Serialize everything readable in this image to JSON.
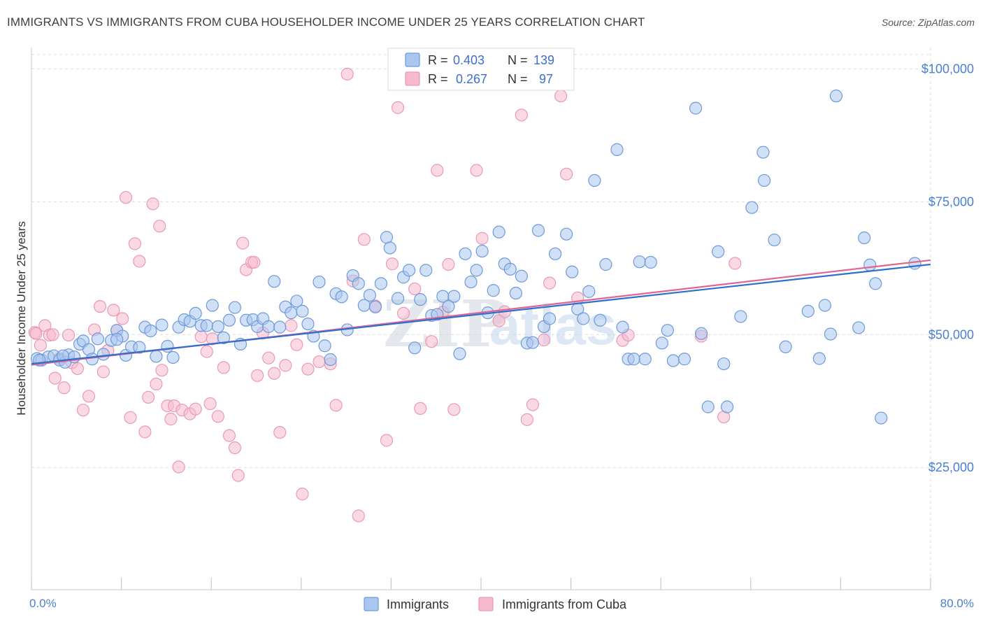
{
  "header": {
    "title": "IMMIGRANTS VS IMMIGRANTS FROM CUBA HOUSEHOLDER INCOME UNDER 25 YEARS CORRELATION CHART",
    "source": "Source: ZipAtlas.com"
  },
  "legend_top": {
    "rows": [
      {
        "r_label": "R =",
        "r_value": "0.403",
        "n_label": "N =",
        "n_value": "139"
      },
      {
        "r_label": "R =",
        "r_value": "0.267",
        "n_label": "N =",
        "n_value": "97"
      }
    ]
  },
  "legend_bottom": [
    "Immigrants",
    "Immigrants from Cuba"
  ],
  "watermark": {
    "part1": "ZIP",
    "part2": "atlas"
  },
  "colors": {
    "blue_fill": "#a9c6ee",
    "blue_stroke": "#6f9ad8",
    "blue_line": "#2f6fd0",
    "pink_fill": "#f6b9cd",
    "pink_stroke": "#e99ab5",
    "pink_line": "#e0658f",
    "grid": "#dcdcdc",
    "axis_text": "#4a7fd0"
  },
  "chart_data": {
    "type": "scatter",
    "title": "IMMIGRANTS VS IMMIGRANTS FROM CUBA HOUSEHOLDER INCOME UNDER 25 YEARS CORRELATION CHART",
    "xlabel": "",
    "ylabel": "Householder Income Under 25 years",
    "xlim": [
      0,
      80
    ],
    "ylim": [
      2000,
      104000
    ],
    "x_tick_labels": [
      "0.0%",
      "80.0%"
    ],
    "y_ticks": [
      25000,
      50000,
      75000,
      100000
    ],
    "y_tick_labels": [
      "$25,000",
      "$50,000",
      "$75,000",
      "$100,000"
    ],
    "grid": true,
    "series": [
      {
        "name": "Immigrants",
        "R": 0.403,
        "N": 139,
        "trend": {
          "x": [
            0,
            80
          ],
          "y": [
            44500,
            63200
          ]
        },
        "points": [
          [
            0.5,
            45500
          ],
          [
            0.9,
            45200
          ],
          [
            1.5,
            45800
          ],
          [
            2.0,
            46000
          ],
          [
            2.5,
            45200
          ],
          [
            3.0,
            44800
          ],
          [
            3.3,
            46200
          ],
          [
            3.8,
            45800
          ],
          [
            4.3,
            48200
          ],
          [
            4.6,
            48800
          ],
          [
            5.1,
            47200
          ],
          [
            5.4,
            45400
          ],
          [
            5.9,
            49200
          ],
          [
            6.4,
            46300
          ],
          [
            7.1,
            48900
          ],
          [
            7.6,
            50800
          ],
          [
            8.1,
            49700
          ],
          [
            8.4,
            46100
          ],
          [
            8.9,
            47700
          ],
          [
            9.6,
            47600
          ],
          [
            10.1,
            51400
          ],
          [
            10.6,
            50700
          ],
          [
            11.1,
            45900
          ],
          [
            11.6,
            51800
          ],
          [
            12.1,
            47800
          ],
          [
            12.6,
            45700
          ],
          [
            13.1,
            51400
          ],
          [
            13.6,
            52800
          ],
          [
            14.1,
            52500
          ],
          [
            14.6,
            54000
          ],
          [
            15.1,
            51700
          ],
          [
            15.6,
            51700
          ],
          [
            16.1,
            55500
          ],
          [
            16.6,
            51500
          ],
          [
            17.1,
            49400
          ],
          [
            17.6,
            52700
          ],
          [
            18.1,
            55100
          ],
          [
            18.6,
            48200
          ],
          [
            19.1,
            52700
          ],
          [
            19.7,
            52800
          ],
          [
            20.1,
            51500
          ],
          [
            20.6,
            53000
          ],
          [
            21.1,
            51500
          ],
          [
            21.6,
            60000
          ],
          [
            22.1,
            51400
          ],
          [
            22.6,
            55200
          ],
          [
            23.1,
            54100
          ],
          [
            23.6,
            56300
          ],
          [
            24.1,
            54400
          ],
          [
            24.6,
            52000
          ],
          [
            25.1,
            49700
          ],
          [
            25.6,
            59900
          ],
          [
            26.1,
            47900
          ],
          [
            26.6,
            45300
          ],
          [
            27.1,
            57700
          ],
          [
            27.6,
            57100
          ],
          [
            28.1,
            50900
          ],
          [
            28.6,
            61100
          ],
          [
            29.1,
            59600
          ],
          [
            29.6,
            55500
          ],
          [
            30.1,
            57400
          ],
          [
            30.6,
            55200
          ],
          [
            31.1,
            59600
          ],
          [
            31.6,
            68300
          ],
          [
            31.9,
            66300
          ],
          [
            32.6,
            56800
          ],
          [
            33.1,
            60800
          ],
          [
            33.6,
            62100
          ],
          [
            34.1,
            47500
          ],
          [
            34.6,
            56600
          ],
          [
            35.1,
            62100
          ],
          [
            35.6,
            53600
          ],
          [
            36.1,
            53800
          ],
          [
            36.6,
            57200
          ],
          [
            37.1,
            55300
          ],
          [
            37.6,
            57200
          ],
          [
            38.1,
            46400
          ],
          [
            38.6,
            65200
          ],
          [
            39.1,
            59900
          ],
          [
            39.6,
            62100
          ],
          [
            40.1,
            65700
          ],
          [
            40.6,
            54100
          ],
          [
            41.1,
            58300
          ],
          [
            41.6,
            69300
          ],
          [
            42.1,
            63300
          ],
          [
            42.6,
            62300
          ],
          [
            43.1,
            57800
          ],
          [
            43.6,
            61000
          ],
          [
            44.1,
            48400
          ],
          [
            44.6,
            48500
          ],
          [
            45.1,
            69600
          ],
          [
            45.6,
            51500
          ],
          [
            46.1,
            53000
          ],
          [
            46.6,
            65200
          ],
          [
            47.6,
            68900
          ],
          [
            48.1,
            61800
          ],
          [
            48.6,
            54800
          ],
          [
            49.1,
            53000
          ],
          [
            49.6,
            58100
          ],
          [
            50.1,
            79000
          ],
          [
            50.6,
            52700
          ],
          [
            51.1,
            63200
          ],
          [
            52.1,
            84800
          ],
          [
            52.6,
            51400
          ],
          [
            53.1,
            45400
          ],
          [
            53.6,
            45400
          ],
          [
            54.1,
            63700
          ],
          [
            54.6,
            45400
          ],
          [
            55.1,
            63600
          ],
          [
            56.1,
            48400
          ],
          [
            56.6,
            50800
          ],
          [
            57.1,
            45100
          ],
          [
            58.1,
            45400
          ],
          [
            59.1,
            92600
          ],
          [
            59.6,
            50200
          ],
          [
            60.2,
            36400
          ],
          [
            61.1,
            65600
          ],
          [
            61.6,
            44500
          ],
          [
            61.9,
            36400
          ],
          [
            63.1,
            53400
          ],
          [
            64.1,
            73900
          ],
          [
            65.1,
            84300
          ],
          [
            65.2,
            79000
          ],
          [
            66.1,
            67800
          ],
          [
            67.1,
            47700
          ],
          [
            69.1,
            54400
          ],
          [
            70.1,
            45500
          ],
          [
            70.6,
            55500
          ],
          [
            71.1,
            50100
          ],
          [
            71.6,
            94900
          ],
          [
            73.6,
            51300
          ],
          [
            74.1,
            68200
          ],
          [
            74.6,
            63100
          ],
          [
            75.1,
            59600
          ],
          [
            75.6,
            34300
          ],
          [
            78.6,
            63400
          ],
          [
            0.7,
            45200
          ],
          [
            2.8,
            46000
          ],
          [
            7.6,
            49100
          ]
        ]
      },
      {
        "name": "Immigrants from Cuba",
        "R": 0.267,
        "N": 97,
        "trend": {
          "x": [
            0,
            80
          ],
          "y": [
            44300,
            64000
          ]
        },
        "points": [
          [
            0.3,
            50400
          ],
          [
            0.8,
            48000
          ],
          [
            1.2,
            51700
          ],
          [
            1.6,
            49900
          ],
          [
            2.1,
            41800
          ],
          [
            2.5,
            45500
          ],
          [
            2.9,
            40000
          ],
          [
            3.3,
            49900
          ],
          [
            3.6,
            44700
          ],
          [
            4.1,
            43600
          ],
          [
            4.6,
            35800
          ],
          [
            5.1,
            38400
          ],
          [
            5.6,
            50900
          ],
          [
            6.1,
            55300
          ],
          [
            6.4,
            43000
          ],
          [
            6.8,
            47000
          ],
          [
            7.3,
            54600
          ],
          [
            7.6,
            50800
          ],
          [
            8.1,
            53000
          ],
          [
            8.4,
            75800
          ],
          [
            8.8,
            34400
          ],
          [
            9.2,
            67100
          ],
          [
            9.6,
            63800
          ],
          [
            10.1,
            31700
          ],
          [
            10.4,
            38200
          ],
          [
            10.8,
            74600
          ],
          [
            11.1,
            40700
          ],
          [
            11.4,
            70400
          ],
          [
            11.6,
            43300
          ],
          [
            12.1,
            36600
          ],
          [
            12.4,
            34100
          ],
          [
            12.7,
            36600
          ],
          [
            13.1,
            25100
          ],
          [
            13.4,
            35800
          ],
          [
            14.1,
            35100
          ],
          [
            14.6,
            36000
          ],
          [
            15.1,
            49600
          ],
          [
            15.6,
            46800
          ],
          [
            15.9,
            37000
          ],
          [
            16.1,
            49200
          ],
          [
            16.6,
            34600
          ],
          [
            17.1,
            43800
          ],
          [
            17.6,
            31000
          ],
          [
            18.1,
            28700
          ],
          [
            18.4,
            23500
          ],
          [
            18.8,
            67200
          ],
          [
            19.1,
            62200
          ],
          [
            19.6,
            63600
          ],
          [
            19.8,
            63600
          ],
          [
            20.1,
            42300
          ],
          [
            20.6,
            50300
          ],
          [
            21.1,
            45600
          ],
          [
            21.6,
            42700
          ],
          [
            22.1,
            31600
          ],
          [
            22.6,
            44200
          ],
          [
            23.1,
            51700
          ],
          [
            23.6,
            48100
          ],
          [
            24.1,
            20000
          ],
          [
            24.6,
            43500
          ],
          [
            25.6,
            44900
          ],
          [
            26.6,
            44500
          ],
          [
            27.1,
            36700
          ],
          [
            28.1,
            99000
          ],
          [
            28.6,
            60100
          ],
          [
            29.1,
            15900
          ],
          [
            29.6,
            67900
          ],
          [
            30.6,
            55400
          ],
          [
            31.6,
            30100
          ],
          [
            32.1,
            63300
          ],
          [
            32.6,
            92700
          ],
          [
            33.1,
            54000
          ],
          [
            34.1,
            58600
          ],
          [
            34.6,
            36100
          ],
          [
            35.6,
            48700
          ],
          [
            36.1,
            80900
          ],
          [
            36.6,
            54200
          ],
          [
            37.1,
            63200
          ],
          [
            37.6,
            35900
          ],
          [
            39.6,
            80900
          ],
          [
            40.1,
            68100
          ],
          [
            41.6,
            52600
          ],
          [
            42.1,
            54300
          ],
          [
            43.6,
            91300
          ],
          [
            44.1,
            34000
          ],
          [
            44.6,
            36800
          ],
          [
            45.6,
            49000
          ],
          [
            46.1,
            59700
          ],
          [
            47.1,
            94900
          ],
          [
            47.6,
            80200
          ],
          [
            48.6,
            56900
          ],
          [
            52.6,
            48900
          ],
          [
            53.1,
            49900
          ],
          [
            59.6,
            49700
          ],
          [
            61.6,
            34500
          ],
          [
            62.6,
            63400
          ],
          [
            0.4,
            50200
          ],
          [
            1.9,
            50000
          ]
        ]
      }
    ]
  }
}
